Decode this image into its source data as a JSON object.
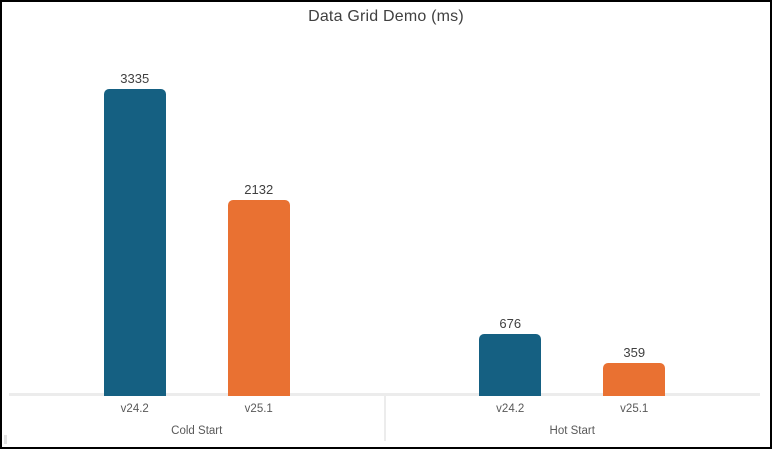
{
  "chart_data": {
    "type": "bar",
    "title": "Data Grid Demo (ms)",
    "categories": [
      "Cold Start",
      "Hot Start"
    ],
    "series": [
      {
        "name": "v24.2",
        "color": "#156082",
        "values": [
          3335,
          676
        ]
      },
      {
        "name": "v25.1",
        "color": "#E97132",
        "values": [
          2132,
          359
        ]
      }
    ],
    "value_labels_shown": true,
    "legend": "none",
    "gridlines": false,
    "y_axis_labels_shown": false
  },
  "colors": {
    "title_text": "#404040",
    "data_label_text": "#404040",
    "axis_label_text": "#595959",
    "axis_line": "#ececec",
    "frame_border": "#000000",
    "background": "#ffffff"
  }
}
